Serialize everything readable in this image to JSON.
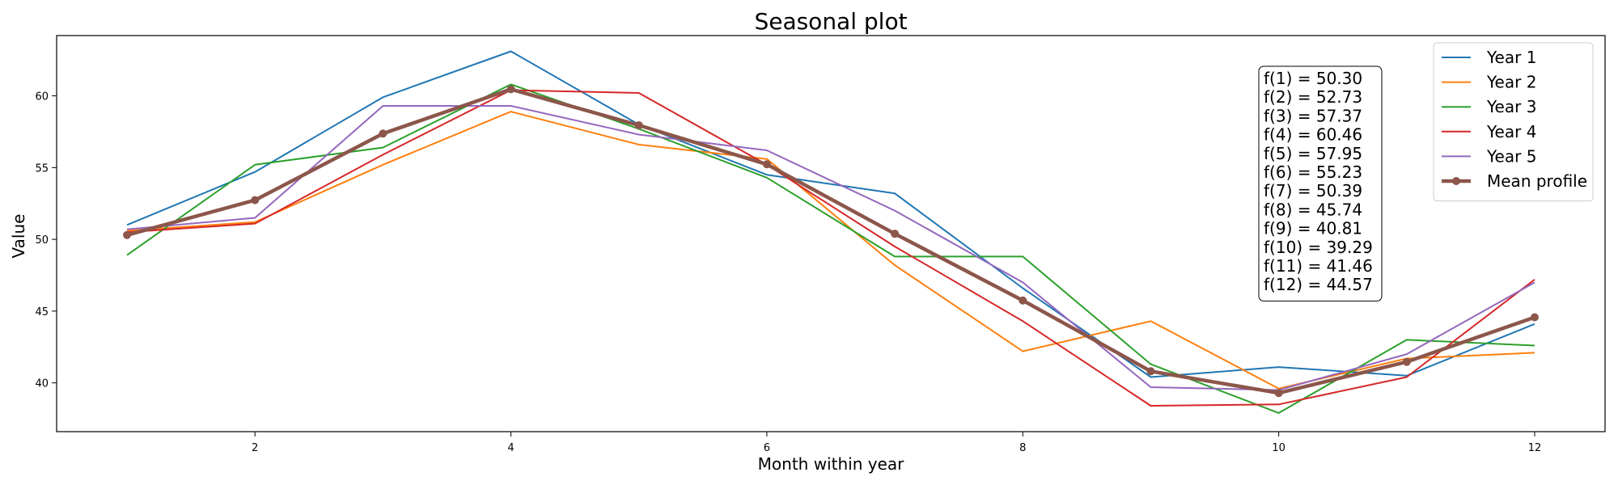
{
  "chart_data": {
    "type": "line",
    "title": "Seasonal plot",
    "xlabel": "Month within year",
    "ylabel": "Value",
    "x": [
      1,
      2,
      3,
      4,
      5,
      6,
      7,
      8,
      9,
      10,
      11,
      12
    ],
    "xlim": [
      0.45,
      12.55
    ],
    "ylim": [
      36.6,
      64.2
    ],
    "xticks": [
      2,
      4,
      6,
      8,
      10,
      12
    ],
    "yticks": [
      40,
      45,
      50,
      55,
      60
    ],
    "grid": false,
    "legend_position": "top-right",
    "series": [
      {
        "name": "Year 1",
        "color": "#1f77b4",
        "width": 2,
        "values": [
          51.0,
          54.7,
          59.9,
          63.1,
          58.0,
          54.5,
          53.2,
          46.6,
          40.4,
          41.1,
          40.5,
          44.1
        ]
      },
      {
        "name": "Year 2",
        "color": "#ff7f0e",
        "width": 2,
        "values": [
          50.6,
          51.2,
          55.2,
          58.9,
          56.6,
          55.6,
          48.2,
          42.2,
          44.3,
          39.6,
          41.7,
          42.1
        ]
      },
      {
        "name": "Year 3",
        "color": "#2ca02c",
        "width": 2,
        "values": [
          48.9,
          55.2,
          56.4,
          60.8,
          57.7,
          54.3,
          48.8,
          48.8,
          41.3,
          37.9,
          43.0,
          42.6
        ]
      },
      {
        "name": "Year 4",
        "color": "#d62728",
        "width": 2,
        "values": [
          50.5,
          51.1,
          55.9,
          60.4,
          60.2,
          55.2,
          49.5,
          44.3,
          38.4,
          38.5,
          40.4,
          47.2
        ]
      },
      {
        "name": "Year 5",
        "color": "#9467bd",
        "width": 2,
        "values": [
          50.7,
          51.5,
          59.3,
          59.3,
          57.3,
          56.2,
          52.0,
          47.0,
          39.7,
          39.5,
          42.0,
          47.0
        ]
      }
    ],
    "mean_profile": {
      "name": "Mean profile",
      "color": "#8c564b",
      "width": 4.5,
      "values": [
        50.3,
        52.73,
        57.37,
        60.46,
        57.95,
        55.23,
        50.39,
        45.74,
        40.81,
        39.29,
        41.46,
        44.57
      ]
    },
    "annotation": [
      "f(1) = 50.30",
      "f(2) = 52.73",
      "f(3) = 57.37",
      "f(4) = 60.46",
      "f(5) = 57.95",
      "f(6) = 55.23",
      "f(7) = 50.39",
      "f(8) = 45.74",
      "f(9) = 40.81",
      "f(10) = 39.29",
      "f(11) = 41.46",
      "f(12) = 44.57"
    ]
  }
}
